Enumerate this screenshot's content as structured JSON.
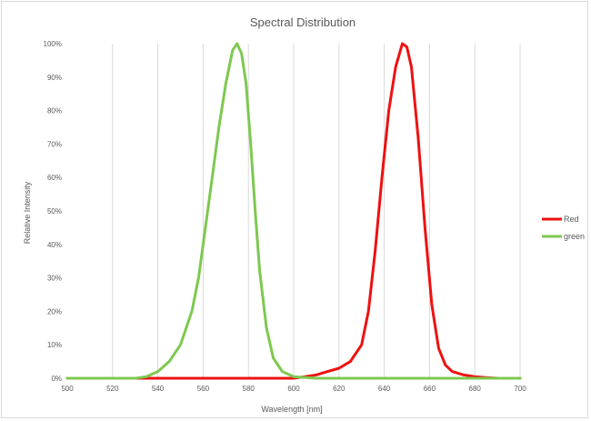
{
  "chart_data": {
    "type": "line",
    "title": "Spectral Distribution",
    "xlabel": "Wavelength [nm]",
    "ylabel": "Relative Intensity",
    "xlim": [
      500,
      700
    ],
    "ylim": [
      0,
      1
    ],
    "x_ticks": [
      500,
      520,
      540,
      560,
      580,
      600,
      620,
      640,
      660,
      680,
      700
    ],
    "x_tick_labels": [
      "500",
      "520",
      "540",
      "560",
      "580",
      "600",
      "620",
      "640",
      "660",
      "680",
      "700"
    ],
    "y_ticks": [
      0,
      0.1,
      0.2,
      0.3,
      0.4,
      0.5,
      0.6,
      0.7,
      0.8,
      0.9,
      1.0
    ],
    "y_tick_labels": [
      "0%",
      "10%",
      "20%",
      "30%",
      "40%",
      "50%",
      "60%",
      "70%",
      "80%",
      "90%",
      "100%"
    ],
    "grid": "vertical",
    "legend_position": "right",
    "series": [
      {
        "name": "Red",
        "color": "#ee1111",
        "x": [
          500,
          540,
          580,
          600,
          605,
          610,
          615,
          620,
          625,
          630,
          633,
          636,
          639,
          642,
          645,
          648,
          650,
          652,
          655,
          658,
          661,
          664,
          667,
          670,
          675,
          680,
          685,
          690,
          700
        ],
        "y": [
          0,
          0,
          0,
          0,
          0.005,
          0.01,
          0.02,
          0.03,
          0.05,
          0.1,
          0.2,
          0.38,
          0.6,
          0.8,
          0.93,
          1.0,
          0.99,
          0.93,
          0.72,
          0.45,
          0.22,
          0.09,
          0.04,
          0.02,
          0.01,
          0.005,
          0.002,
          0,
          0
        ]
      },
      {
        "name": "green",
        "color": "#7ec850",
        "x": [
          500,
          530,
          535,
          540,
          545,
          550,
          555,
          558,
          561,
          564,
          567,
          570,
          573,
          575,
          577,
          579,
          581,
          583,
          585,
          588,
          591,
          595,
          600,
          610,
          650,
          700
        ],
        "y": [
          0,
          0,
          0.005,
          0.02,
          0.05,
          0.1,
          0.2,
          0.3,
          0.45,
          0.6,
          0.75,
          0.88,
          0.98,
          1.0,
          0.97,
          0.88,
          0.7,
          0.5,
          0.32,
          0.15,
          0.06,
          0.02,
          0.005,
          0,
          0,
          0
        ]
      }
    ]
  }
}
